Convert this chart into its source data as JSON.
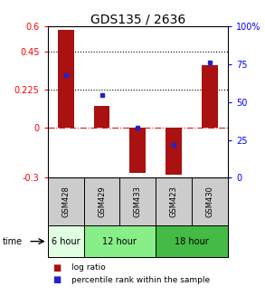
{
  "title": "GDS135 / 2636",
  "samples": [
    "GSM428",
    "GSM429",
    "GSM433",
    "GSM423",
    "GSM430"
  ],
  "log_ratios": [
    0.58,
    0.13,
    -0.27,
    -0.28,
    0.37
  ],
  "percentile_ranks": [
    68,
    55,
    33,
    22,
    76
  ],
  "time_groups": [
    {
      "label": "6 hour",
      "start": 0,
      "end": 1,
      "color": "#e0ffe0"
    },
    {
      "label": "12 hour",
      "start": 1,
      "end": 3,
      "color": "#88ee88"
    },
    {
      "label": "18 hour",
      "start": 3,
      "end": 5,
      "color": "#44bb44"
    }
  ],
  "ylim_left": [
    -0.3,
    0.6
  ],
  "ylim_right": [
    0,
    100
  ],
  "yticks_left": [
    -0.3,
    0,
    0.225,
    0.45,
    0.6
  ],
  "ytick_labels_left": [
    "-0.3",
    "0",
    "0.225",
    "0.45",
    "0.6"
  ],
  "yticks_right": [
    0,
    25,
    50,
    75,
    100
  ],
  "ytick_labels_right": [
    "0",
    "25",
    "50",
    "75",
    "100%"
  ],
  "hlines_dotted": [
    0.225,
    0.45
  ],
  "hline_zero_color": "#cc2222",
  "bar_color": "#aa1111",
  "dot_color": "#2222cc",
  "bar_width": 0.45,
  "legend_bar_label": "log ratio",
  "legend_dot_label": "percentile rank within the sample",
  "time_label": "time",
  "sample_bg_color": "#cccccc",
  "title_fontsize": 10,
  "tick_fontsize": 7,
  "sample_fontsize": 6,
  "time_fontsize": 7,
  "legend_fontsize": 6.5
}
